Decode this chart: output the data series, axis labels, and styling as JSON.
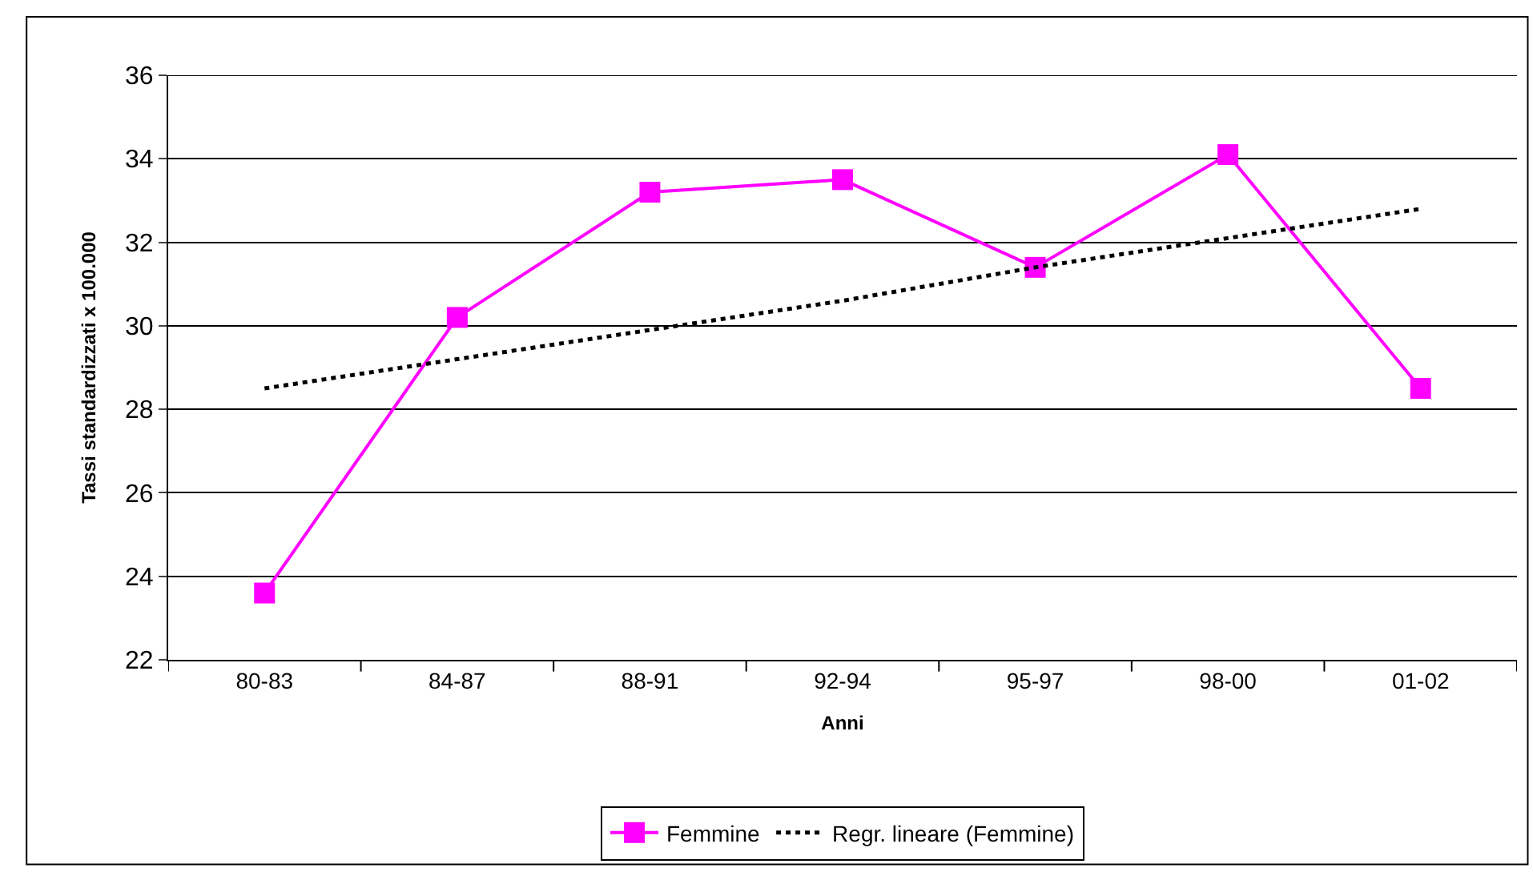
{
  "chart_data": {
    "type": "line",
    "xlabel": "Anni",
    "ylabel": "Tassi standardizzati x 100.000",
    "categories": [
      "80-83",
      "84-87",
      "88-91",
      "92-94",
      "95-97",
      "98-00",
      "01-02"
    ],
    "series": [
      {
        "name": "Femmine",
        "color": "#ff00ff",
        "values": [
          23.6,
          30.2,
          33.2,
          33.5,
          31.4,
          34.1,
          28.5
        ],
        "marker": "square",
        "line_style": "solid"
      },
      {
        "name": "Regr. lineare (Femmine)",
        "color": "#000000",
        "type": "line",
        "values": [
          28.5,
          29.2,
          29.9,
          30.6,
          31.4,
          32.1,
          32.8
        ],
        "marker": "none",
        "line_style": "dotted"
      }
    ],
    "ylim": [
      22,
      36
    ],
    "yticks": [
      22,
      24,
      26,
      28,
      30,
      32,
      34,
      36
    ],
    "grid": "y",
    "legend": "bottom"
  }
}
